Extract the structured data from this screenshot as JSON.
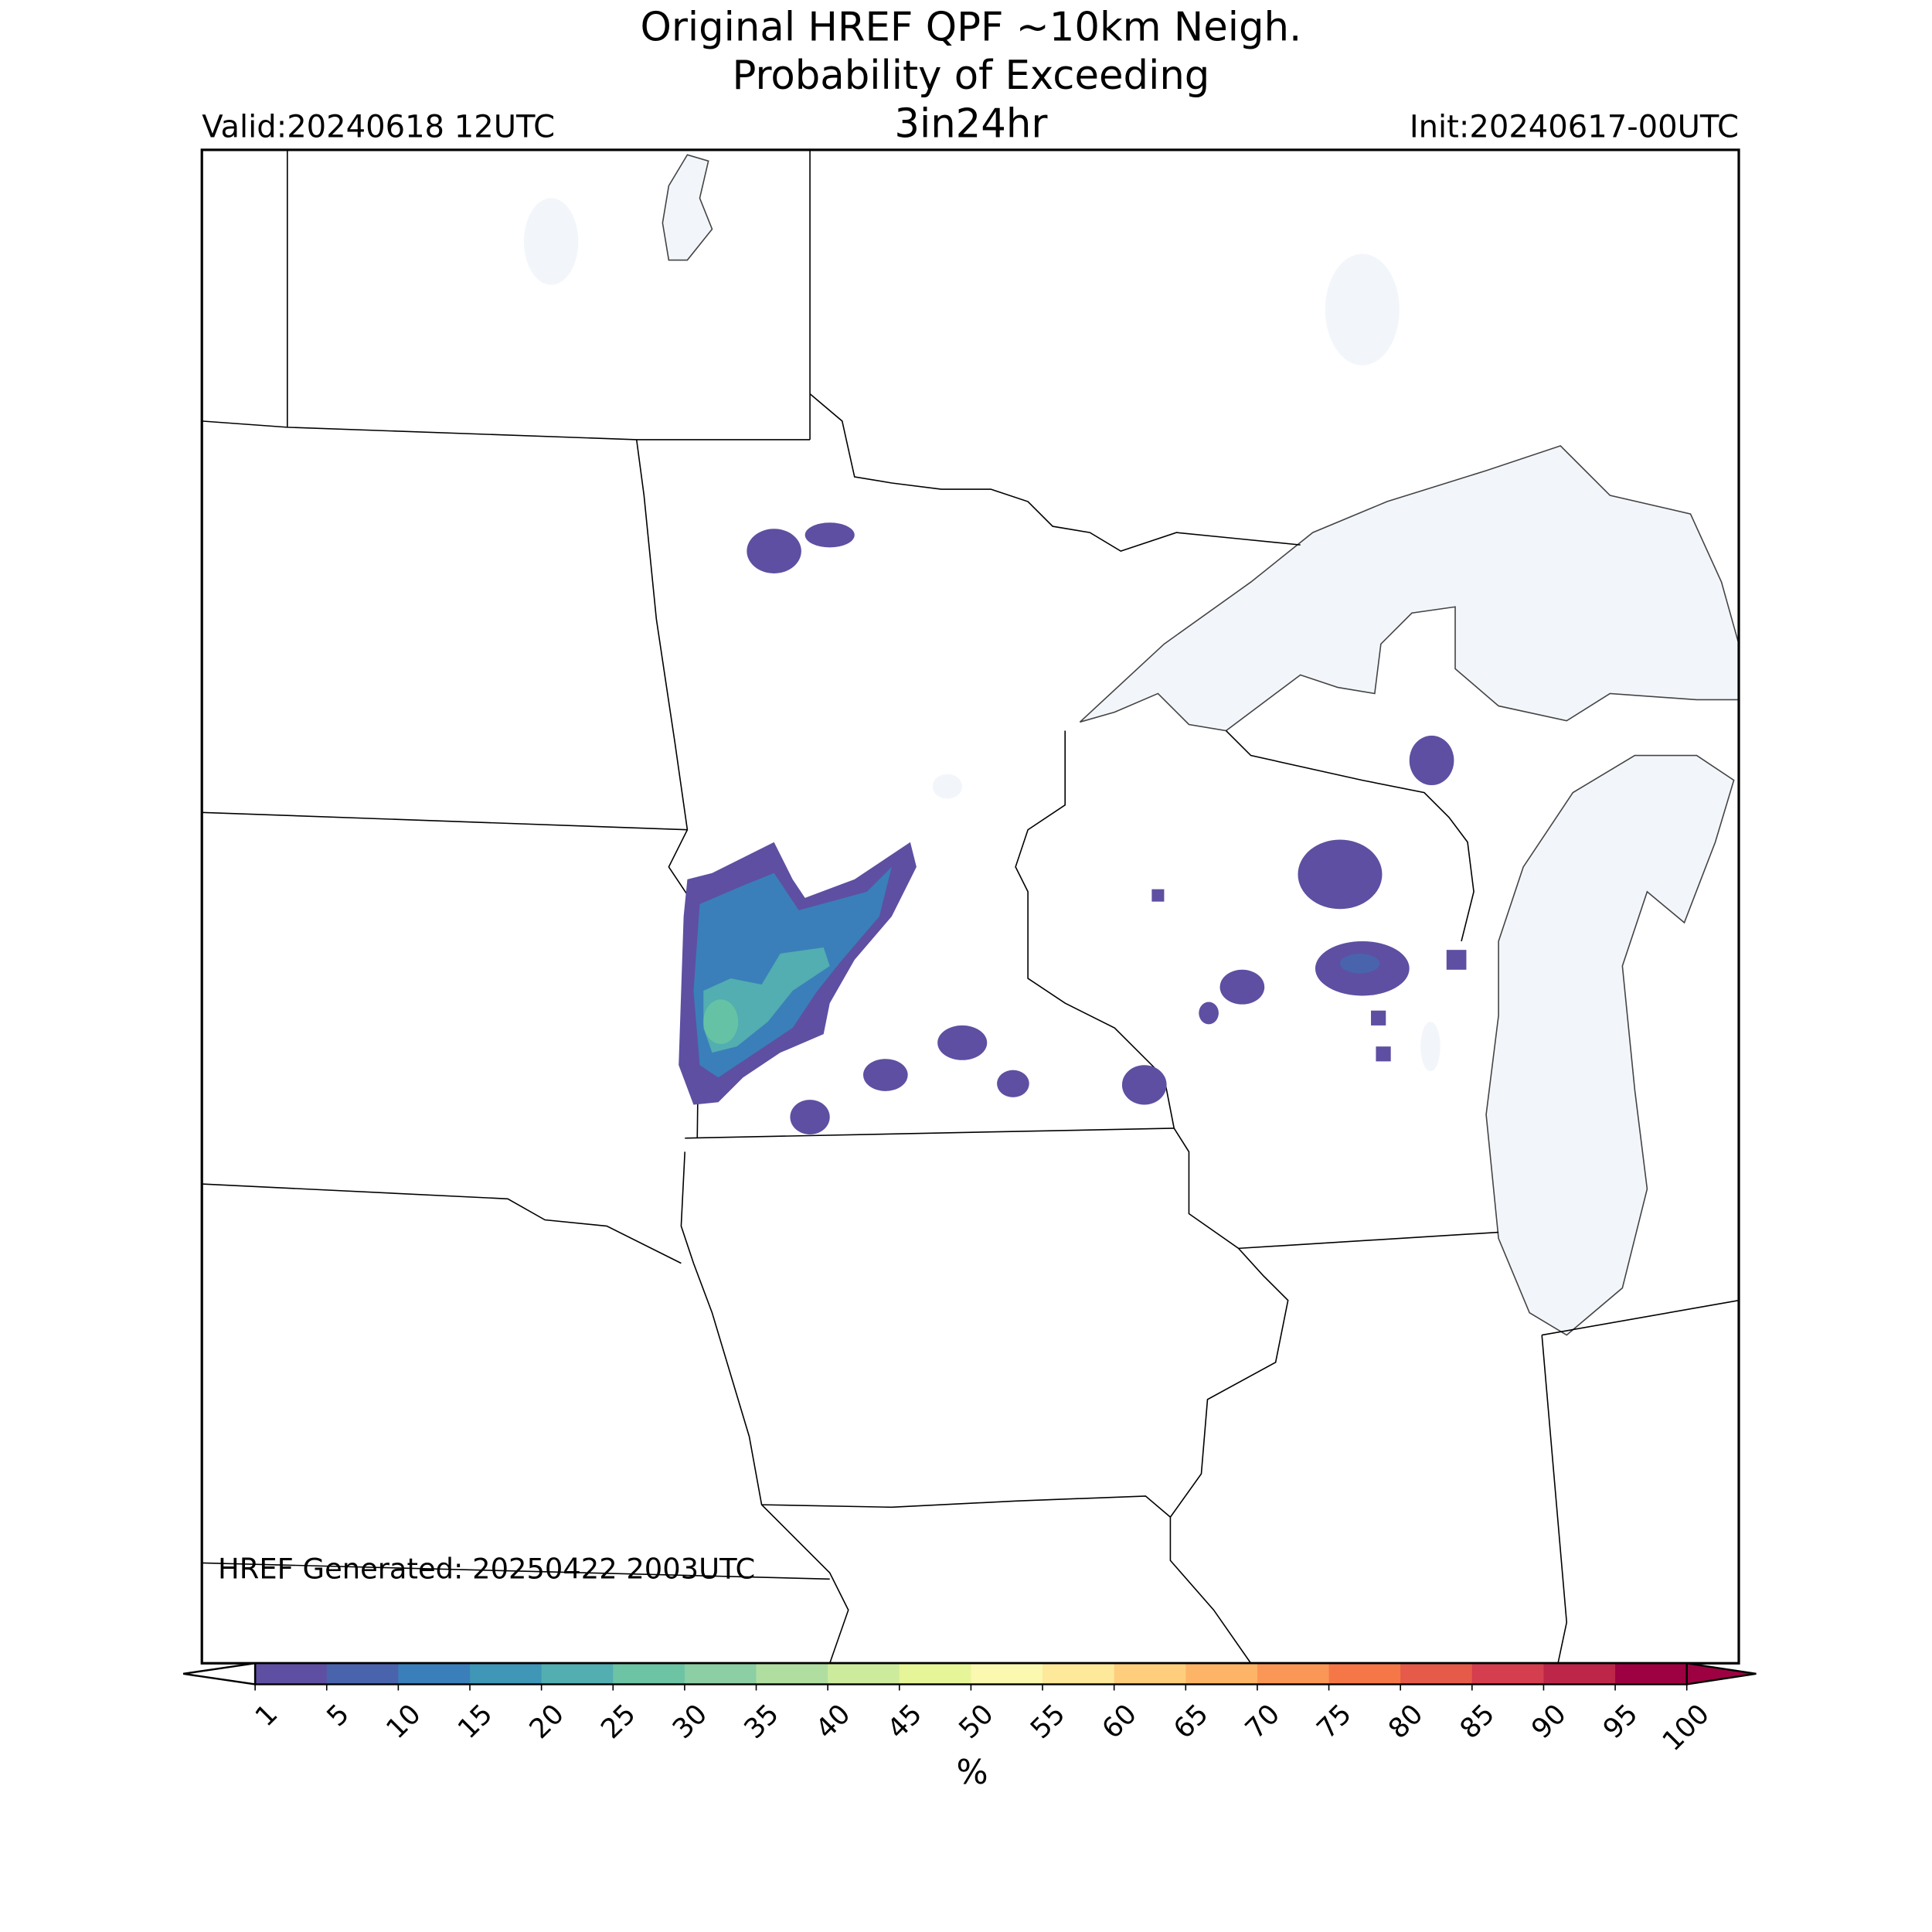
{
  "header": {
    "title": [
      "Original HREF QPF ~10km Neigh.",
      "Probability of Exceeding",
      "3in24hr"
    ],
    "valid": "Valid:20240618 12UTC",
    "init": "Init:20240617-00UTC"
  },
  "footer": {
    "generated": "HREF Generated: 20250422 2003UTC"
  },
  "colorbar": {
    "ticks": [
      1,
      5,
      10,
      15,
      20,
      25,
      30,
      35,
      40,
      45,
      50,
      55,
      60,
      65,
      70,
      75,
      80,
      85,
      90,
      95,
      100
    ],
    "colors": [
      "#5e4fa2",
      "#4a63ad",
      "#3a7fb9",
      "#3f96b7",
      "#52aeb0",
      "#6cc4a4",
      "#8ccfa4",
      "#b0dea1",
      "#cdeb9d",
      "#e6f598",
      "#fbf8b0",
      "#fee89a",
      "#fece7c",
      "#fdb466",
      "#fa9656",
      "#f57748",
      "#e55a49",
      "#d53e4f",
      "#bd2649",
      "#9e0142"
    ],
    "extend_colors": [
      "#ffffff",
      "#9e0142"
    ],
    "label": "%"
  }
}
